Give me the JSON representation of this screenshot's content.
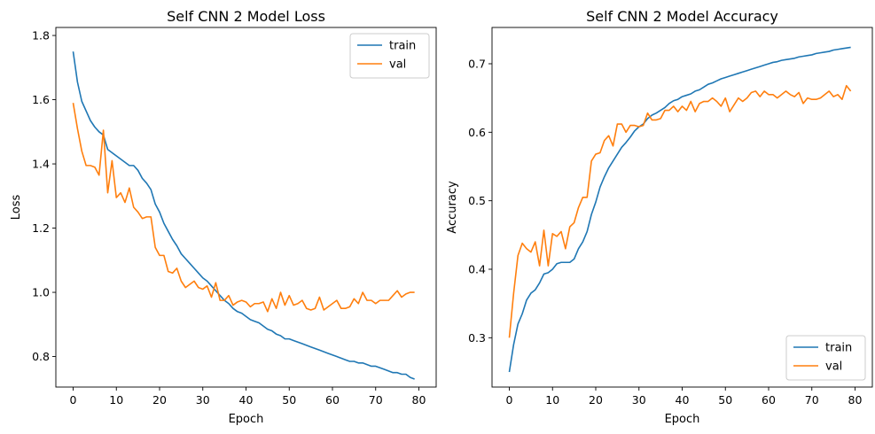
{
  "chart_data": [
    {
      "type": "line",
      "title": "Self CNN 2 Model Loss",
      "xlabel": "Epoch",
      "ylabel": "Loss",
      "xlim": [
        -4,
        84
      ],
      "ylim": [
        0.705,
        1.825
      ],
      "xticks": [
        0,
        10,
        20,
        30,
        40,
        50,
        60,
        70,
        80
      ],
      "yticks": [
        0.8,
        1.0,
        1.2,
        1.4,
        1.6,
        1.8
      ],
      "grid": false,
      "legend_position": "upper right",
      "series": [
        {
          "name": "train",
          "color": "#1f77b4",
          "values": [
            1.75,
            1.655,
            1.595,
            1.565,
            1.535,
            1.515,
            1.5,
            1.49,
            1.445,
            1.435,
            1.425,
            1.415,
            1.405,
            1.395,
            1.395,
            1.38,
            1.355,
            1.34,
            1.32,
            1.275,
            1.25,
            1.215,
            1.19,
            1.165,
            1.145,
            1.12,
            1.105,
            1.09,
            1.075,
            1.06,
            1.045,
            1.035,
            1.02,
            1.005,
            0.99,
            0.975,
            0.965,
            0.95,
            0.94,
            0.935,
            0.925,
            0.915,
            0.91,
            0.905,
            0.895,
            0.885,
            0.88,
            0.87,
            0.865,
            0.855,
            0.855,
            0.85,
            0.845,
            0.84,
            0.835,
            0.83,
            0.825,
            0.82,
            0.815,
            0.81,
            0.805,
            0.8,
            0.795,
            0.79,
            0.785,
            0.785,
            0.78,
            0.78,
            0.775,
            0.77,
            0.77,
            0.765,
            0.76,
            0.755,
            0.75,
            0.75,
            0.745,
            0.745,
            0.735,
            0.73
          ]
        },
        {
          "name": "val",
          "color": "#ff7f0e",
          "values": [
            1.59,
            1.51,
            1.44,
            1.395,
            1.395,
            1.39,
            1.365,
            1.505,
            1.31,
            1.41,
            1.295,
            1.31,
            1.28,
            1.325,
            1.265,
            1.25,
            1.23,
            1.235,
            1.235,
            1.14,
            1.115,
            1.115,
            1.065,
            1.06,
            1.075,
            1.035,
            1.015,
            1.025,
            1.035,
            1.015,
            1.01,
            1.02,
            0.985,
            1.03,
            0.975,
            0.975,
            0.99,
            0.96,
            0.97,
            0.975,
            0.97,
            0.955,
            0.965,
            0.965,
            0.97,
            0.94,
            0.98,
            0.95,
            1.0,
            0.96,
            0.99,
            0.96,
            0.965,
            0.975,
            0.95,
            0.945,
            0.95,
            0.985,
            0.945,
            0.955,
            0.965,
            0.975,
            0.95,
            0.95,
            0.955,
            0.98,
            0.965,
            1.0,
            0.975,
            0.975,
            0.965,
            0.975,
            0.975,
            0.975,
            0.99,
            1.005,
            0.985,
            0.995,
            1.0,
            1.0
          ]
        }
      ]
    },
    {
      "type": "line",
      "title": "Self CNN 2 Model Accuracy",
      "xlabel": "Epoch",
      "ylabel": "Accuracy",
      "xlim": [
        -4,
        84
      ],
      "ylim": [
        0.228,
        0.753
      ],
      "xticks": [
        0,
        10,
        20,
        30,
        40,
        50,
        60,
        70,
        80
      ],
      "yticks": [
        0.3,
        0.4,
        0.5,
        0.6,
        0.7
      ],
      "grid": false,
      "legend_position": "lower right",
      "series": [
        {
          "name": "train",
          "color": "#1f77b4",
          "values": [
            0.25,
            0.29,
            0.32,
            0.335,
            0.355,
            0.365,
            0.37,
            0.38,
            0.393,
            0.395,
            0.4,
            0.408,
            0.41,
            0.41,
            0.41,
            0.415,
            0.43,
            0.44,
            0.455,
            0.48,
            0.498,
            0.52,
            0.535,
            0.548,
            0.558,
            0.568,
            0.578,
            0.585,
            0.593,
            0.602,
            0.608,
            0.612,
            0.62,
            0.625,
            0.628,
            0.632,
            0.636,
            0.642,
            0.646,
            0.648,
            0.652,
            0.654,
            0.656,
            0.66,
            0.662,
            0.666,
            0.67,
            0.672,
            0.675,
            0.678,
            0.68,
            0.682,
            0.684,
            0.686,
            0.688,
            0.69,
            0.692,
            0.694,
            0.696,
            0.698,
            0.7,
            0.702,
            0.703,
            0.705,
            0.706,
            0.707,
            0.708,
            0.71,
            0.711,
            0.712,
            0.713,
            0.715,
            0.716,
            0.717,
            0.718,
            0.72,
            0.721,
            0.722,
            0.723,
            0.724
          ]
        },
        {
          "name": "val",
          "color": "#ff7f0e",
          "values": [
            0.3,
            0.365,
            0.42,
            0.438,
            0.43,
            0.425,
            0.44,
            0.405,
            0.457,
            0.405,
            0.452,
            0.448,
            0.455,
            0.43,
            0.462,
            0.468,
            0.49,
            0.505,
            0.505,
            0.558,
            0.568,
            0.57,
            0.588,
            0.595,
            0.58,
            0.612,
            0.612,
            0.6,
            0.61,
            0.61,
            0.608,
            0.61,
            0.628,
            0.618,
            0.618,
            0.62,
            0.632,
            0.632,
            0.638,
            0.63,
            0.638,
            0.632,
            0.645,
            0.63,
            0.642,
            0.645,
            0.645,
            0.65,
            0.645,
            0.638,
            0.65,
            0.63,
            0.64,
            0.65,
            0.645,
            0.65,
            0.658,
            0.66,
            0.652,
            0.66,
            0.655,
            0.655,
            0.65,
            0.655,
            0.66,
            0.655,
            0.652,
            0.658,
            0.642,
            0.65,
            0.648,
            0.648,
            0.65,
            0.655,
            0.66,
            0.652,
            0.655,
            0.648,
            0.668,
            0.66
          ]
        }
      ]
    }
  ]
}
